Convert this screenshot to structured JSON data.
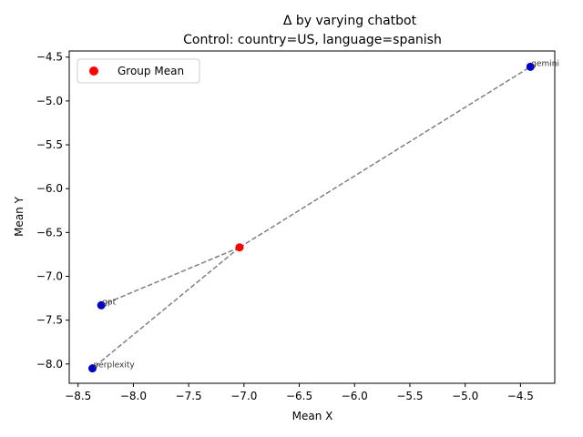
{
  "chart_data": {
    "type": "scatter",
    "title_lines": [
      "Δ by varying chatbot",
      "Control: country=US, language=spanish"
    ],
    "xlabel": "Mean X",
    "ylabel": "Mean Y",
    "xlim": [
      -8.58,
      -4.19
    ],
    "ylim": [
      -8.22,
      -4.43
    ],
    "xticks": [
      -8.5,
      -8.0,
      -7.5,
      -7.0,
      -6.5,
      -6.0,
      -5.5,
      -5.0,
      -4.5
    ],
    "xtick_labels": [
      "−8.5",
      "−8.0",
      "−7.5",
      "−7.0",
      "−6.5",
      "−6.0",
      "−5.5",
      "−5.0",
      "−4.5"
    ],
    "yticks": [
      -8.0,
      -7.5,
      -7.0,
      -6.5,
      -6.0,
      -5.5,
      -5.0,
      -4.5
    ],
    "ytick_labels": [
      "−8.0",
      "−7.5",
      "−7.0",
      "−6.5",
      "−6.0",
      "−5.5",
      "−5.0",
      "−4.5"
    ],
    "grid": false,
    "legend": {
      "placement": "upper-left",
      "entries": [
        {
          "label": "Group Mean",
          "color": "#ff0000"
        }
      ]
    },
    "group_mean": {
      "x": -7.04,
      "y": -6.67,
      "color": "#ff0000"
    },
    "points": [
      {
        "label": "gemini",
        "x": -4.41,
        "y": -4.61,
        "color": "#0000cc"
      },
      {
        "label": "gpt",
        "x": -8.29,
        "y": -7.33,
        "color": "#0000cc"
      },
      {
        "label": "perplexity",
        "x": -8.37,
        "y": -8.05,
        "color": "#0000cc"
      }
    ],
    "line_color": "#808080"
  }
}
